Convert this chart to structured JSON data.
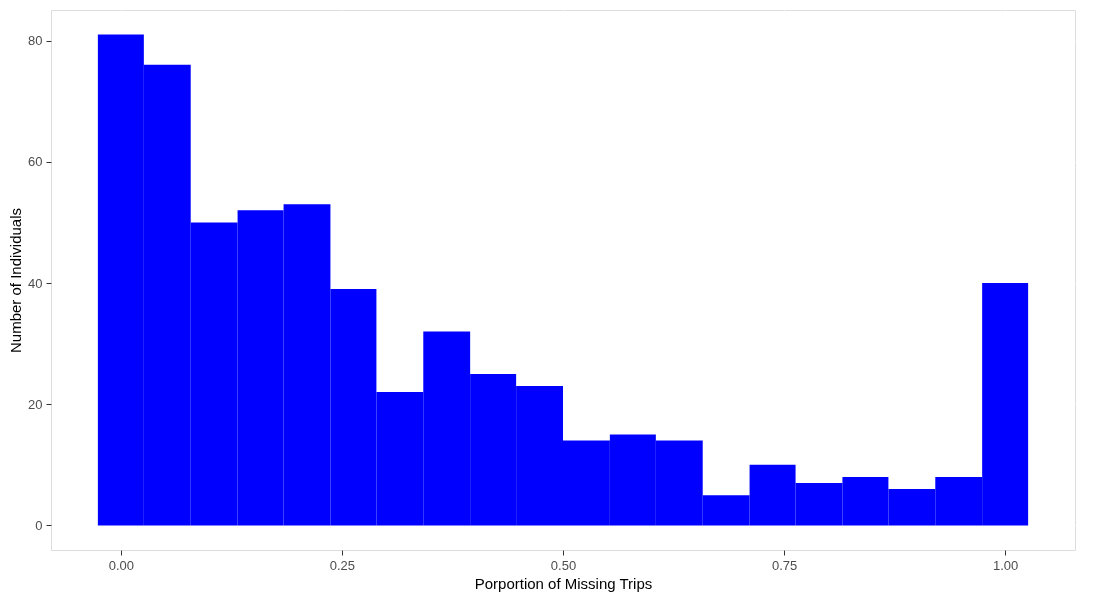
{
  "chart_data": {
    "type": "histogram",
    "xlabel": "Porportion of Missing Trips",
    "ylabel": "Number of Individuals",
    "bins": [
      -0.026,
      0.026,
      0.079,
      0.132,
      0.184,
      0.237,
      0.289,
      0.342,
      0.395,
      0.447,
      0.5,
      0.553,
      0.605,
      0.658,
      0.711,
      0.763,
      0.816,
      0.868,
      0.921,
      0.974,
      1.026
    ],
    "values": [
      81,
      76,
      50,
      52,
      53,
      39,
      22,
      32,
      25,
      23,
      14,
      15,
      14,
      5,
      10,
      7,
      8,
      6,
      8,
      40
    ],
    "color": "#0000ff",
    "xlim": [
      -0.079,
      1.079
    ],
    "xticks": [
      {
        "value": 0,
        "label": "0.00"
      },
      {
        "value": 0.25,
        "label": "0.25"
      },
      {
        "value": 0.5,
        "label": "0.50"
      },
      {
        "value": 0.75,
        "label": "0.75"
      },
      {
        "value": 1,
        "label": "1.00"
      }
    ],
    "ylim": [
      -4.05,
      85.05
    ],
    "yticks": [
      0,
      20,
      40,
      60,
      80
    ],
    "grid": true
  }
}
